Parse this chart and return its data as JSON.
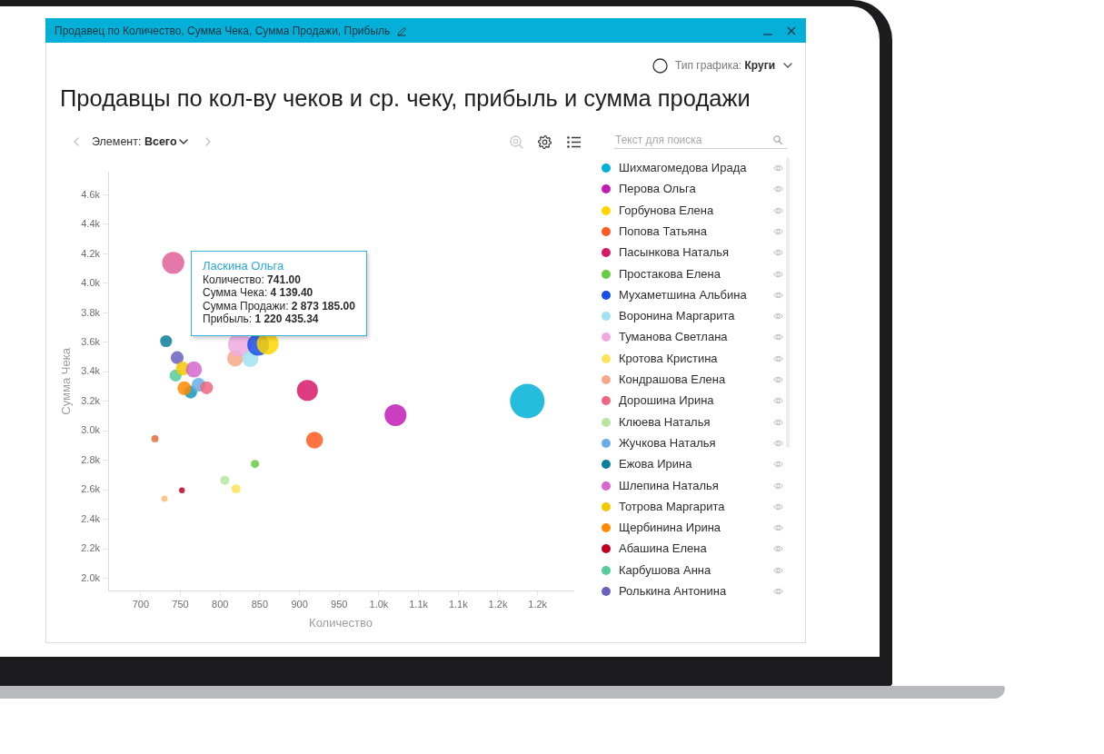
{
  "chart_data": {
    "type": "bubble",
    "title": "Продавцы по кол-ву чеков и ср. чеку, прибыль и сумма продажи",
    "xlabel": "Количество",
    "ylabel": "Сумма Чека",
    "xlim": [
      659,
      1245
    ],
    "xticks": [
      700,
      750,
      800,
      850,
      900,
      950,
      {
        "value": 1000,
        "label": "1.0k"
      },
      {
        "value": 1050,
        "label": "1.1k"
      },
      {
        "value": 1100,
        "label": "1.1k"
      },
      {
        "value": 1150,
        "label": "1.2k"
      },
      {
        "value": 1200,
        "label": "1.2k"
      }
    ],
    "ylim": [
      1915,
      4757
    ],
    "yticks": [
      {
        "value": 2000,
        "label": "2.0k"
      },
      {
        "value": 2200,
        "label": "2.2k"
      },
      {
        "value": 2400,
        "label": "2.4k"
      },
      {
        "value": 2600,
        "label": "2.6k"
      },
      {
        "value": 2800,
        "label": "2.8k"
      },
      {
        "value": 3000,
        "label": "3.0k"
      },
      {
        "value": 3200,
        "label": "3.2k"
      },
      {
        "value": 3400,
        "label": "3.4k"
      },
      {
        "value": 3600,
        "label": "3.6k"
      },
      {
        "value": 3800,
        "label": "3.8k"
      },
      {
        "value": 4000,
        "label": "4.0k"
      },
      {
        "value": 4200,
        "label": "4.2k"
      },
      {
        "value": 4400,
        "label": "4.4k"
      },
      {
        "value": 4600,
        "label": "4.6k"
      }
    ],
    "legend": "right",
    "series": [
      {
        "name": "Шихмагомедова Ирада",
        "color": "#00b0d8",
        "x": [
          1187
        ],
        "values": [
          3203
        ],
        "sizes": [
          1
        ]
      },
      {
        "name": "Перова Ольга",
        "color": "#c21cb4",
        "x": [
          1021
        ],
        "values": [
          3107
        ],
        "sizes": [
          0.4
        ]
      },
      {
        "name": "Горбунова Елена",
        "color": "#ffd600",
        "x": [
          860
        ],
        "values": [
          3592
        ],
        "sizes": [
          0.4
        ]
      },
      {
        "name": "Попова Татьяна",
        "color": "#ff5a1f",
        "x": [
          919
        ],
        "values": [
          2938
        ],
        "sizes": [
          0.24
        ]
      },
      {
        "name": "Пасынкова Наталья",
        "color": "#d81868",
        "x": [
          910
        ],
        "values": [
          3275
        ],
        "sizes": [
          0.37
        ]
      },
      {
        "name": "Простакова Елена",
        "color": "#66cc44",
        "x": [
          844
        ],
        "values": [
          2777
        ],
        "sizes": [
          0.056
        ]
      },
      {
        "name": "Мухаметшина Альбина",
        "color": "#1a4fe8",
        "x": [
          848
        ],
        "values": [
          3584
        ],
        "sizes": [
          0.4
        ]
      },
      {
        "name": "Воронина Маргарита",
        "color": "#a2e2f2",
        "x": [
          838
        ],
        "values": [
          3489
        ],
        "sizes": [
          0.22
        ]
      },
      {
        "name": "Туманова Светлана",
        "color": "#eeaae0",
        "x": [
          825
        ],
        "values": [
          3586
        ],
        "sizes": [
          0.47
        ]
      },
      {
        "name": "Кротова Кристина",
        "color": "#fbe45a",
        "x": [
          820
        ],
        "values": [
          2608
        ],
        "sizes": [
          0.069
        ]
      },
      {
        "name": "Кондрашова Елена",
        "color": "#f8a88a",
        "x": [
          819
        ],
        "values": [
          3492
        ],
        "sizes": [
          0.22
        ]
      },
      {
        "name": "Дорошина Ирина",
        "color": "#ee6680",
        "x": [
          783
        ],
        "values": [
          3293
        ],
        "sizes": [
          0.14
        ]
      },
      {
        "name": "Клюева Наталья",
        "color": "#b8e6a0",
        "x": [
          806
        ],
        "values": [
          2666
        ],
        "sizes": [
          0.069
        ]
      },
      {
        "name": "Жучкова Наталья",
        "color": "#6aaee8",
        "x": [
          773
        ],
        "values": [
          3313
        ],
        "sizes": [
          0.16
        ]
      },
      {
        "name": "Ежова Ирина",
        "color": "#0b7f99",
        "x": [
          732
        ],
        "values": [
          3609
        ],
        "sizes": [
          0.12
        ]
      },
      {
        "name": "Шлепина Наталья",
        "color": "#d466cc",
        "x": [
          767
        ],
        "values": [
          3417
        ],
        "sizes": [
          0.22
        ]
      },
      {
        "name": "Тотрова Маргарита",
        "color": "#f2c800",
        "x": [
          753
        ],
        "values": [
          3423
        ],
        "sizes": [
          0.16
        ]
      },
      {
        "name": "Щербинина Ирина",
        "color": "#ff8a00",
        "x": [
          755
        ],
        "values": [
          3290
        ],
        "sizes": [
          0.16
        ]
      },
      {
        "name": "Абашина Елена",
        "color": "#c00020",
        "x": [
          752
        ],
        "values": [
          2598
        ],
        "sizes": [
          0.028
        ]
      },
      {
        "name": "Карбушова Анна",
        "color": "#55cc99",
        "x": [
          744
        ],
        "values": [
          3376
        ],
        "sizes": [
          0.12
        ]
      },
      {
        "name": "Ролькина Антонина",
        "color": "#6a60c0",
        "x": [
          746
        ],
        "values": [
          3497
        ],
        "sizes": [
          0.14
        ]
      },
      {
        "color": "#e0609a",
        "x": [
          741
        ],
        "values": [
          4139.4
        ],
        "sizes": [
          0.41
        ]
      },
      {
        "color": "#1597b8",
        "x": [
          763
        ],
        "values": [
          3264
        ],
        "sizes": [
          0.14
        ]
      },
      {
        "color": "#e0703a",
        "x": [
          718
        ],
        "values": [
          2948
        ],
        "sizes": [
          0.044
        ]
      },
      {
        "color": "#ffbb7a",
        "x": [
          730
        ],
        "values": [
          2541
        ],
        "sizes": [
          0.032
        ]
      }
    ],
    "annotations": [
      "Продавец по Количество, Сумма Чека, Сумма Продажи, Прибыль",
      "Тип графика: Круги",
      "Элемент: Всего",
      "Текст для поиска",
      "Ласкина Ольга\nКоличество: 741.00\nСумма Чека: 4 139.40\nСумма Продажи: 2 873 185.00\nПрибыль: 1 220 435.34"
    ]
  }
}
